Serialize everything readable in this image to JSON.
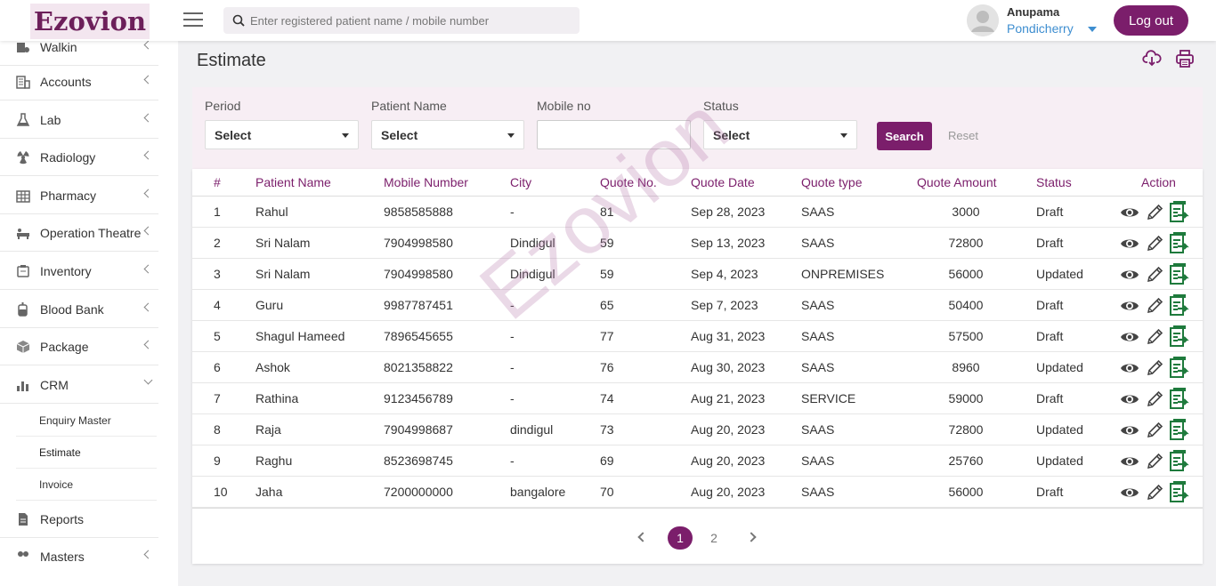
{
  "header": {
    "logo_text": "Ezovion",
    "search_placeholder": "Enter registered patient name / mobile number",
    "user_name": "Anupama",
    "user_location": "Pondicherry",
    "logout_label": "Log out"
  },
  "sidebar": {
    "items": [
      {
        "label": "Walkin",
        "icon": "walkin-icon"
      },
      {
        "label": "Accounts",
        "icon": "accounts-icon"
      },
      {
        "label": "Lab",
        "icon": "flask-icon"
      },
      {
        "label": "Radiology",
        "icon": "radiology-icon"
      },
      {
        "label": "Pharmacy",
        "icon": "pharmacy-icon"
      },
      {
        "label": "Operation Theatre",
        "icon": "operation-theatre-icon"
      },
      {
        "label": "Inventory",
        "icon": "inventory-icon"
      },
      {
        "label": "Blood Bank",
        "icon": "blood-bank-icon"
      },
      {
        "label": "Package",
        "icon": "package-icon"
      },
      {
        "label": "CRM",
        "icon": "bar-chart-icon"
      }
    ],
    "crm_sub": [
      {
        "label": "Enquiry Master"
      },
      {
        "label": "Estimate"
      },
      {
        "label": "Invoice"
      }
    ],
    "reports": {
      "label": "Reports"
    },
    "masters": {
      "label": "Masters"
    }
  },
  "page": {
    "title": "Estimate",
    "watermark": "Ezovion"
  },
  "filters": {
    "period_label": "Period",
    "period_value": "Select",
    "patient_label": "Patient Name",
    "patient_value": "Select",
    "mobile_label": "Mobile no",
    "mobile_value": "",
    "status_label": "Status",
    "status_value": "Select",
    "search_label": "Search",
    "reset_label": "Reset"
  },
  "table": {
    "columns": [
      "#",
      "Patient Name",
      "Mobile Number",
      "City",
      "Quote No.",
      "Quote Date",
      "Quote type",
      "Quote Amount",
      "Status",
      "Action"
    ],
    "rows": [
      [
        "1",
        "Rahul",
        "9858585888",
        "-",
        "81",
        "Sep 28, 2023",
        "SAAS",
        "3000",
        "Draft"
      ],
      [
        "2",
        "Sri Nalam",
        "7904998580",
        "Dindigul",
        "59",
        "Sep 13, 2023",
        "SAAS",
        "72800",
        "Draft"
      ],
      [
        "3",
        "Sri Nalam",
        "7904998580",
        "Dindigul",
        "59",
        "Sep 4, 2023",
        "ONPREMISES",
        "56000",
        "Updated"
      ],
      [
        "4",
        "Guru",
        "9987787451",
        "-",
        "65",
        "Sep 7, 2023",
        "SAAS",
        "50400",
        "Draft"
      ],
      [
        "5",
        "Shagul Hameed",
        "7896545655",
        "-",
        "77",
        "Aug 31, 2023",
        "SAAS",
        "57500",
        "Draft"
      ],
      [
        "6",
        "Ashok",
        "8021358822",
        "-",
        "76",
        "Aug 30, 2023",
        "SAAS",
        "8960",
        "Updated"
      ],
      [
        "7",
        "Rathina",
        "9123456789",
        "-",
        "74",
        "Aug 21, 2023",
        "SERVICE",
        "59000",
        "Draft"
      ],
      [
        "8",
        "Raja",
        "7904998687",
        "dindigul",
        "73",
        "Aug 20, 2023",
        "SAAS",
        "72800",
        "Updated"
      ],
      [
        "9",
        "Raghu",
        "8523698745",
        "-",
        "69",
        "Aug 20, 2023",
        "SAAS",
        "25760",
        "Updated"
      ],
      [
        "10",
        "Jaha",
        "7200000000",
        "bangalore",
        "70",
        "Aug 20, 2023",
        "SAAS",
        "56000",
        "Draft"
      ]
    ]
  },
  "pagination": {
    "pages": [
      "1",
      "2"
    ],
    "current": "1"
  },
  "colors": {
    "brand": "#7b1e6b",
    "link": "#3e8ed0",
    "action_green": "#1e7a3c"
  }
}
